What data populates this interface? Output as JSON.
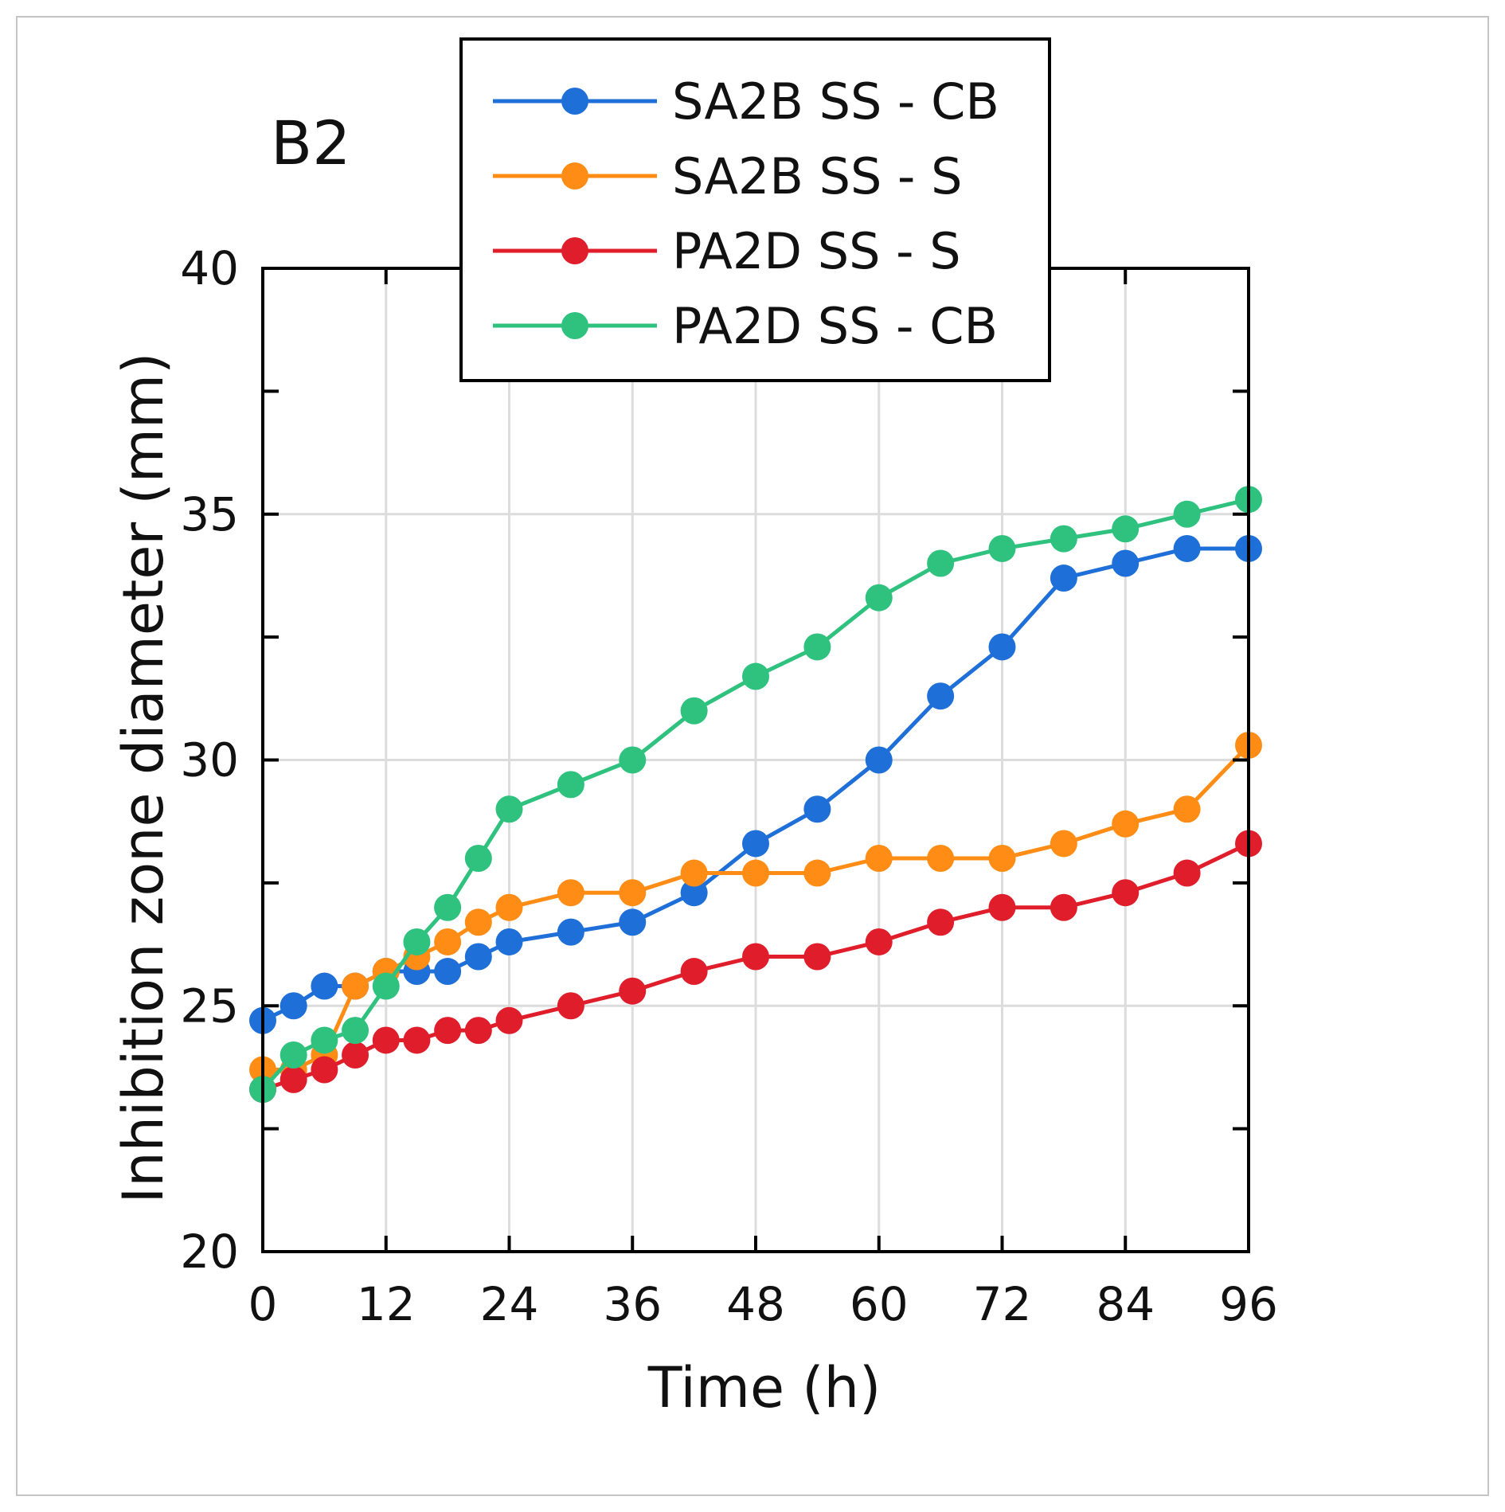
{
  "chart_data": {
    "type": "line",
    "panel_label": "B2",
    "xlabel": "Time (h)",
    "ylabel": "Inhibition zone diameter (mm)",
    "xlim": [
      0,
      96
    ],
    "ylim": [
      20,
      40
    ],
    "x_ticks": [
      0,
      12,
      24,
      36,
      48,
      60,
      72,
      84,
      96
    ],
    "x_tick_labels": [
      "0",
      "12",
      "24",
      "36",
      "48",
      "60",
      "72",
      "84",
      "96"
    ],
    "y_ticks": [
      20,
      25,
      30,
      35,
      40
    ],
    "y_tick_labels": [
      "20",
      "25",
      "30",
      "35",
      "40"
    ],
    "y_minor_ticks": [
      22.5,
      27.5,
      32.5,
      37.5
    ],
    "grid": true,
    "legend_position": "top-center",
    "x": [
      0,
      3,
      6,
      9,
      12,
      15,
      18,
      21,
      24,
      30,
      36,
      42,
      48,
      54,
      60,
      66,
      72,
      78,
      84,
      90,
      96
    ],
    "series": [
      {
        "name": "SA2B SS - CB",
        "color": "#1f6fd9",
        "values": [
          24.7,
          25.0,
          25.4,
          25.4,
          25.7,
          25.7,
          25.7,
          26.0,
          26.3,
          26.5,
          26.7,
          27.3,
          28.3,
          29.0,
          30.0,
          31.3,
          32.3,
          33.7,
          34.0,
          34.3,
          34.3
        ]
      },
      {
        "name": "SA2B SS - S",
        "color": "#ff8c14",
        "values": [
          23.7,
          23.7,
          24.0,
          25.4,
          25.7,
          26.0,
          26.3,
          26.7,
          27.0,
          27.3,
          27.3,
          27.7,
          27.7,
          27.7,
          28.0,
          28.0,
          28.0,
          28.3,
          28.7,
          29.0,
          30.3
        ]
      },
      {
        "name": "PA2D SS - S",
        "color": "#e01e2b",
        "values": [
          23.3,
          23.5,
          23.7,
          24.0,
          24.3,
          24.3,
          24.5,
          24.5,
          24.7,
          25.0,
          25.3,
          25.7,
          26.0,
          26.0,
          26.3,
          26.7,
          27.0,
          27.0,
          27.3,
          27.7,
          28.3
        ]
      },
      {
        "name": "PA2D SS - CB",
        "color": "#2ec27e",
        "values": [
          23.3,
          24.0,
          24.3,
          24.5,
          25.4,
          26.3,
          27.0,
          28.0,
          29.0,
          29.5,
          30.0,
          31.0,
          31.7,
          32.3,
          33.3,
          34.0,
          34.3,
          34.5,
          34.7,
          35.0,
          35.3
        ]
      }
    ]
  }
}
